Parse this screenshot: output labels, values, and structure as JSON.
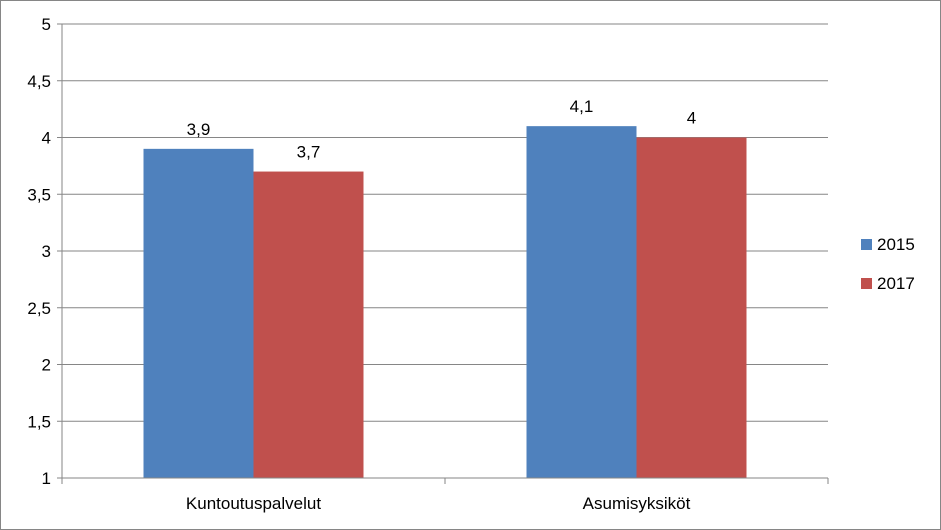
{
  "chart_data": {
    "type": "bar",
    "title": "",
    "xlabel": "",
    "ylabel": "",
    "categories": [
      "Kuntoutuspalvelut",
      "Asumisyksiköt"
    ],
    "series": [
      {
        "name": "2015",
        "values": [
          3.9,
          4.1
        ],
        "labels": [
          "3,9",
          "4,1"
        ],
        "color": "#4F81BD"
      },
      {
        "name": "2017",
        "values": [
          3.7,
          4.0
        ],
        "labels": [
          "3,7",
          "4"
        ],
        "color": "#C0504D"
      }
    ],
    "ylim": [
      1,
      5
    ],
    "yticks": [
      1,
      1.5,
      2,
      2.5,
      3,
      3.5,
      4,
      4.5,
      5
    ],
    "ytick_labels": [
      "1",
      "1,5",
      "2",
      "2,5",
      "3",
      "3,5",
      "4",
      "4,5",
      "5"
    ],
    "grid": true,
    "legend_position": "right",
    "gridline_color": "#868686",
    "axis_color": "#868686"
  }
}
